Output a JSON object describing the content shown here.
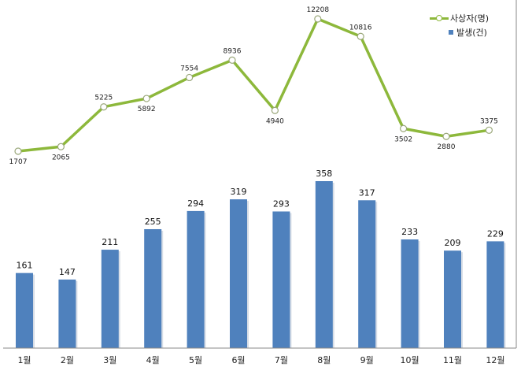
{
  "chart_data": {
    "type": "bar+line",
    "categories": [
      "1월",
      "2월",
      "3월",
      "4월",
      "5월",
      "6월",
      "7월",
      "8월",
      "9월",
      "10월",
      "11월",
      "12월"
    ],
    "series": [
      {
        "name": "사상자(명)",
        "type": "line",
        "color": "#8db83b",
        "values": [
          1707,
          2065,
          5225,
          5892,
          7554,
          8936,
          4940,
          12208,
          10816,
          3502,
          2880,
          3375
        ]
      },
      {
        "name": "발생(건)",
        "type": "bar",
        "color": "#4f81bd",
        "values": [
          161,
          147,
          211,
          255,
          294,
          319,
          293,
          358,
          317,
          233,
          209,
          229
        ]
      }
    ],
    "legend": "top-right",
    "grid": false
  }
}
